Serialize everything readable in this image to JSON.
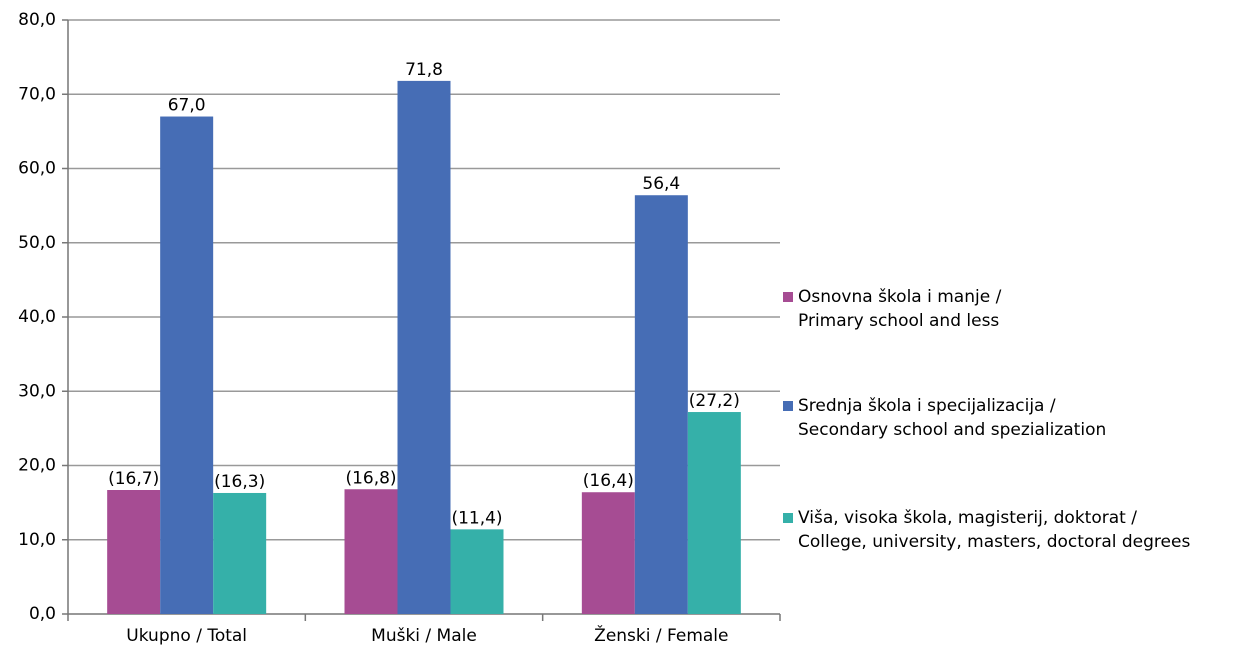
{
  "chart_data": {
    "type": "bar",
    "categories": [
      "Ukupno / Total",
      "Muški / Male",
      "Ženski / Female"
    ],
    "series": [
      {
        "name": "Osnovna škola i manje /\nPrimary school and less",
        "color": "#a64c93",
        "values": [
          16.7,
          16.8,
          16.4
        ],
        "value_labels": [
          "(16,7)",
          "(16,8)",
          "(16,4)"
        ]
      },
      {
        "name": "Srednja škola i specijalizacija /\nSecondary school and spezialization",
        "color": "#466db5",
        "values": [
          67.0,
          71.8,
          56.4
        ],
        "value_labels": [
          "67,0",
          "71,8",
          "56,4"
        ]
      },
      {
        "name": "Viša, visoka škola, magisterij, doktorat /\nCollege, university, masters, doctoral degrees",
        "color": "#35b0a9",
        "values": [
          16.3,
          11.4,
          27.2
        ],
        "value_labels": [
          "(16,3)",
          "(11,4)",
          "(27,2)"
        ]
      }
    ],
    "ylim": [
      0,
      80
    ],
    "yticks": [
      {
        "value": 0,
        "label": "0,0"
      },
      {
        "value": 10,
        "label": "10,0"
      },
      {
        "value": 20,
        "label": "20,0"
      },
      {
        "value": 30,
        "label": "30,0"
      },
      {
        "value": 40,
        "label": "40,0"
      },
      {
        "value": 50,
        "label": "50,0"
      },
      {
        "value": 60,
        "label": "60,0"
      },
      {
        "value": 70,
        "label": "70,0"
      },
      {
        "value": 80,
        "label": "80,0"
      }
    ],
    "grid": true,
    "legend": "right"
  }
}
